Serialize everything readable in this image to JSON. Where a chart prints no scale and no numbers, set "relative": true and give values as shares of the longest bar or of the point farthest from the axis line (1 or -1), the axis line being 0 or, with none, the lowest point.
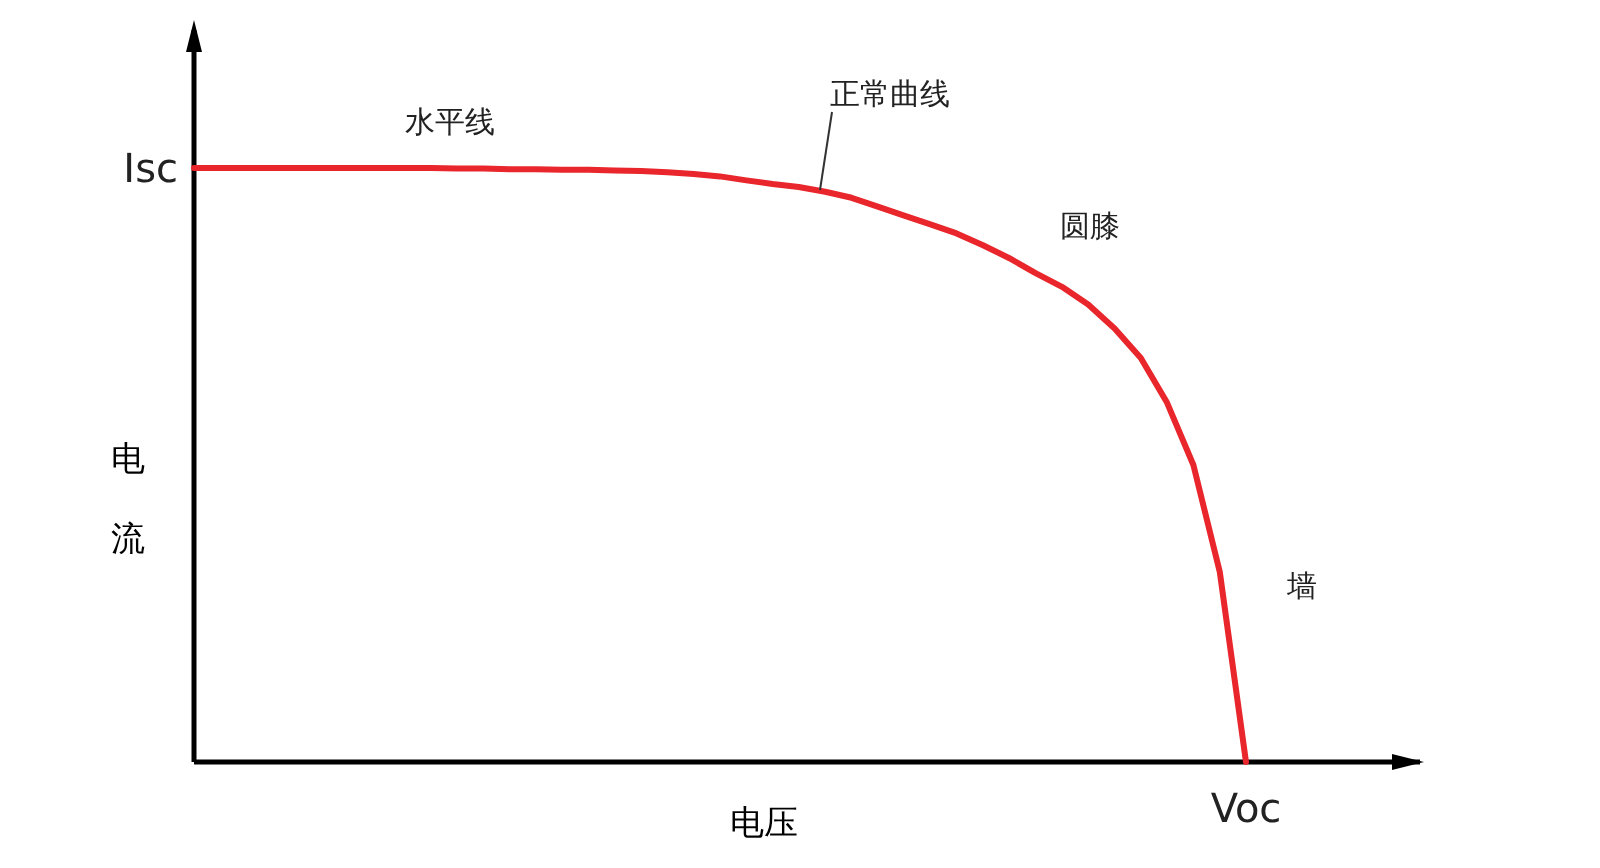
{
  "chart_data": {
    "type": "line",
    "relative": true,
    "xlabel": "电压",
    "ylabel": "电流",
    "categories": [
      null,
      null,
      null,
      null,
      null,
      null,
      null,
      null,
      null,
      null,
      null,
      null,
      null,
      null,
      null,
      null,
      null,
      null,
      null,
      null,
      null,
      null,
      null,
      null,
      null,
      null,
      null,
      null,
      null,
      null,
      null,
      null,
      null,
      null,
      null,
      null,
      null,
      null,
      null,
      null,
      null
    ],
    "series": [
      {
        "color": "#e8262b",
        "values": [
          1,
          1,
          1,
          1,
          1,
          1,
          1,
          1,
          1,
          1,
          0.999,
          0.999,
          0.998,
          0.998,
          0.997,
          0.997,
          0.996,
          0.995,
          0.993,
          0.99,
          0.986,
          0.979,
          0.973,
          0.968,
          0.96,
          0.95,
          0.935,
          0.92,
          0.905,
          0.89,
          0.87,
          0.848,
          0.823,
          0.8,
          0.77,
          0.73,
          0.68,
          0.605,
          0.5,
          0.32,
          0
        ]
      }
    ],
    "annotations": [
      "Isc",
      "Voc",
      "水平线",
      "正常曲线",
      "圆膝",
      "墙"
    ],
    "grid": false,
    "marker": "none",
    "line_style": "solid"
  }
}
